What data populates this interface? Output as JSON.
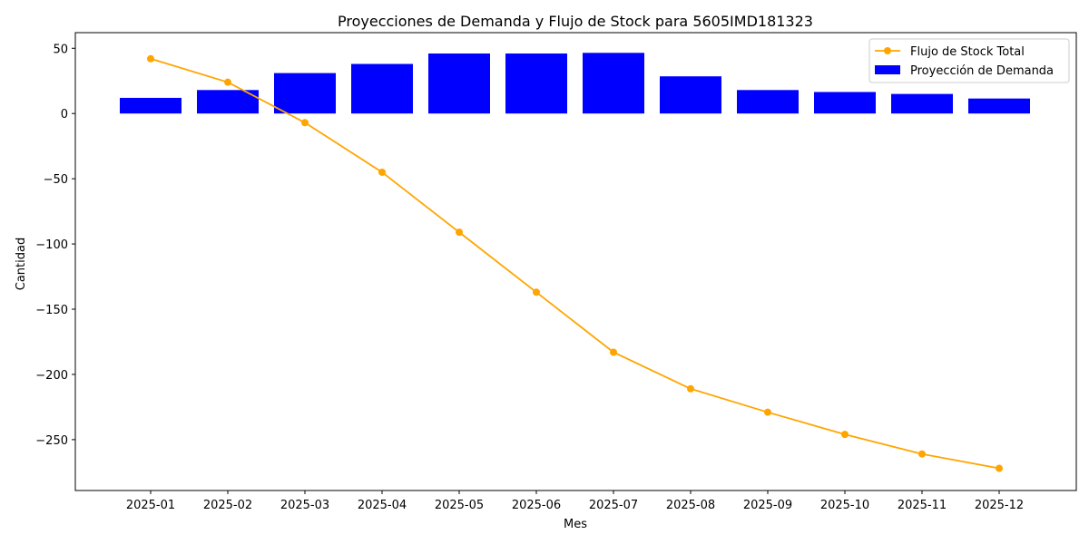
{
  "chart_data": {
    "type": "bar+line",
    "title": "Proyecciones de Demanda y Flujo de Stock para 5605IMD181323",
    "xlabel": "Mes",
    "ylabel": "Cantidad",
    "categories": [
      "2025-01",
      "2025-02",
      "2025-03",
      "2025-04",
      "2025-05",
      "2025-06",
      "2025-07",
      "2025-08",
      "2025-09",
      "2025-10",
      "2025-11",
      "2025-12"
    ],
    "ylim": [
      -289,
      62
    ],
    "yticks": [
      50,
      0,
      -50,
      -100,
      -150,
      -200,
      -250
    ],
    "ytick_labels": [
      "50",
      "0",
      "−50",
      "−100",
      "−150",
      "−200",
      "−250"
    ],
    "grid": false,
    "legend_position": "top-right",
    "series": [
      {
        "name": "Flujo de Stock Total",
        "kind": "line",
        "color": "#ffa500",
        "marker": "circle",
        "values": [
          42,
          24,
          -7,
          -45,
          -91,
          -137,
          -183,
          -211,
          -229,
          -246,
          -261,
          -272
        ]
      },
      {
        "name": "Proyección de Demanda",
        "kind": "bar",
        "color": "#0000ff",
        "values": [
          12,
          18,
          31,
          38,
          46,
          46,
          46.5,
          28.5,
          18,
          16.5,
          15,
          11.5
        ]
      }
    ]
  }
}
